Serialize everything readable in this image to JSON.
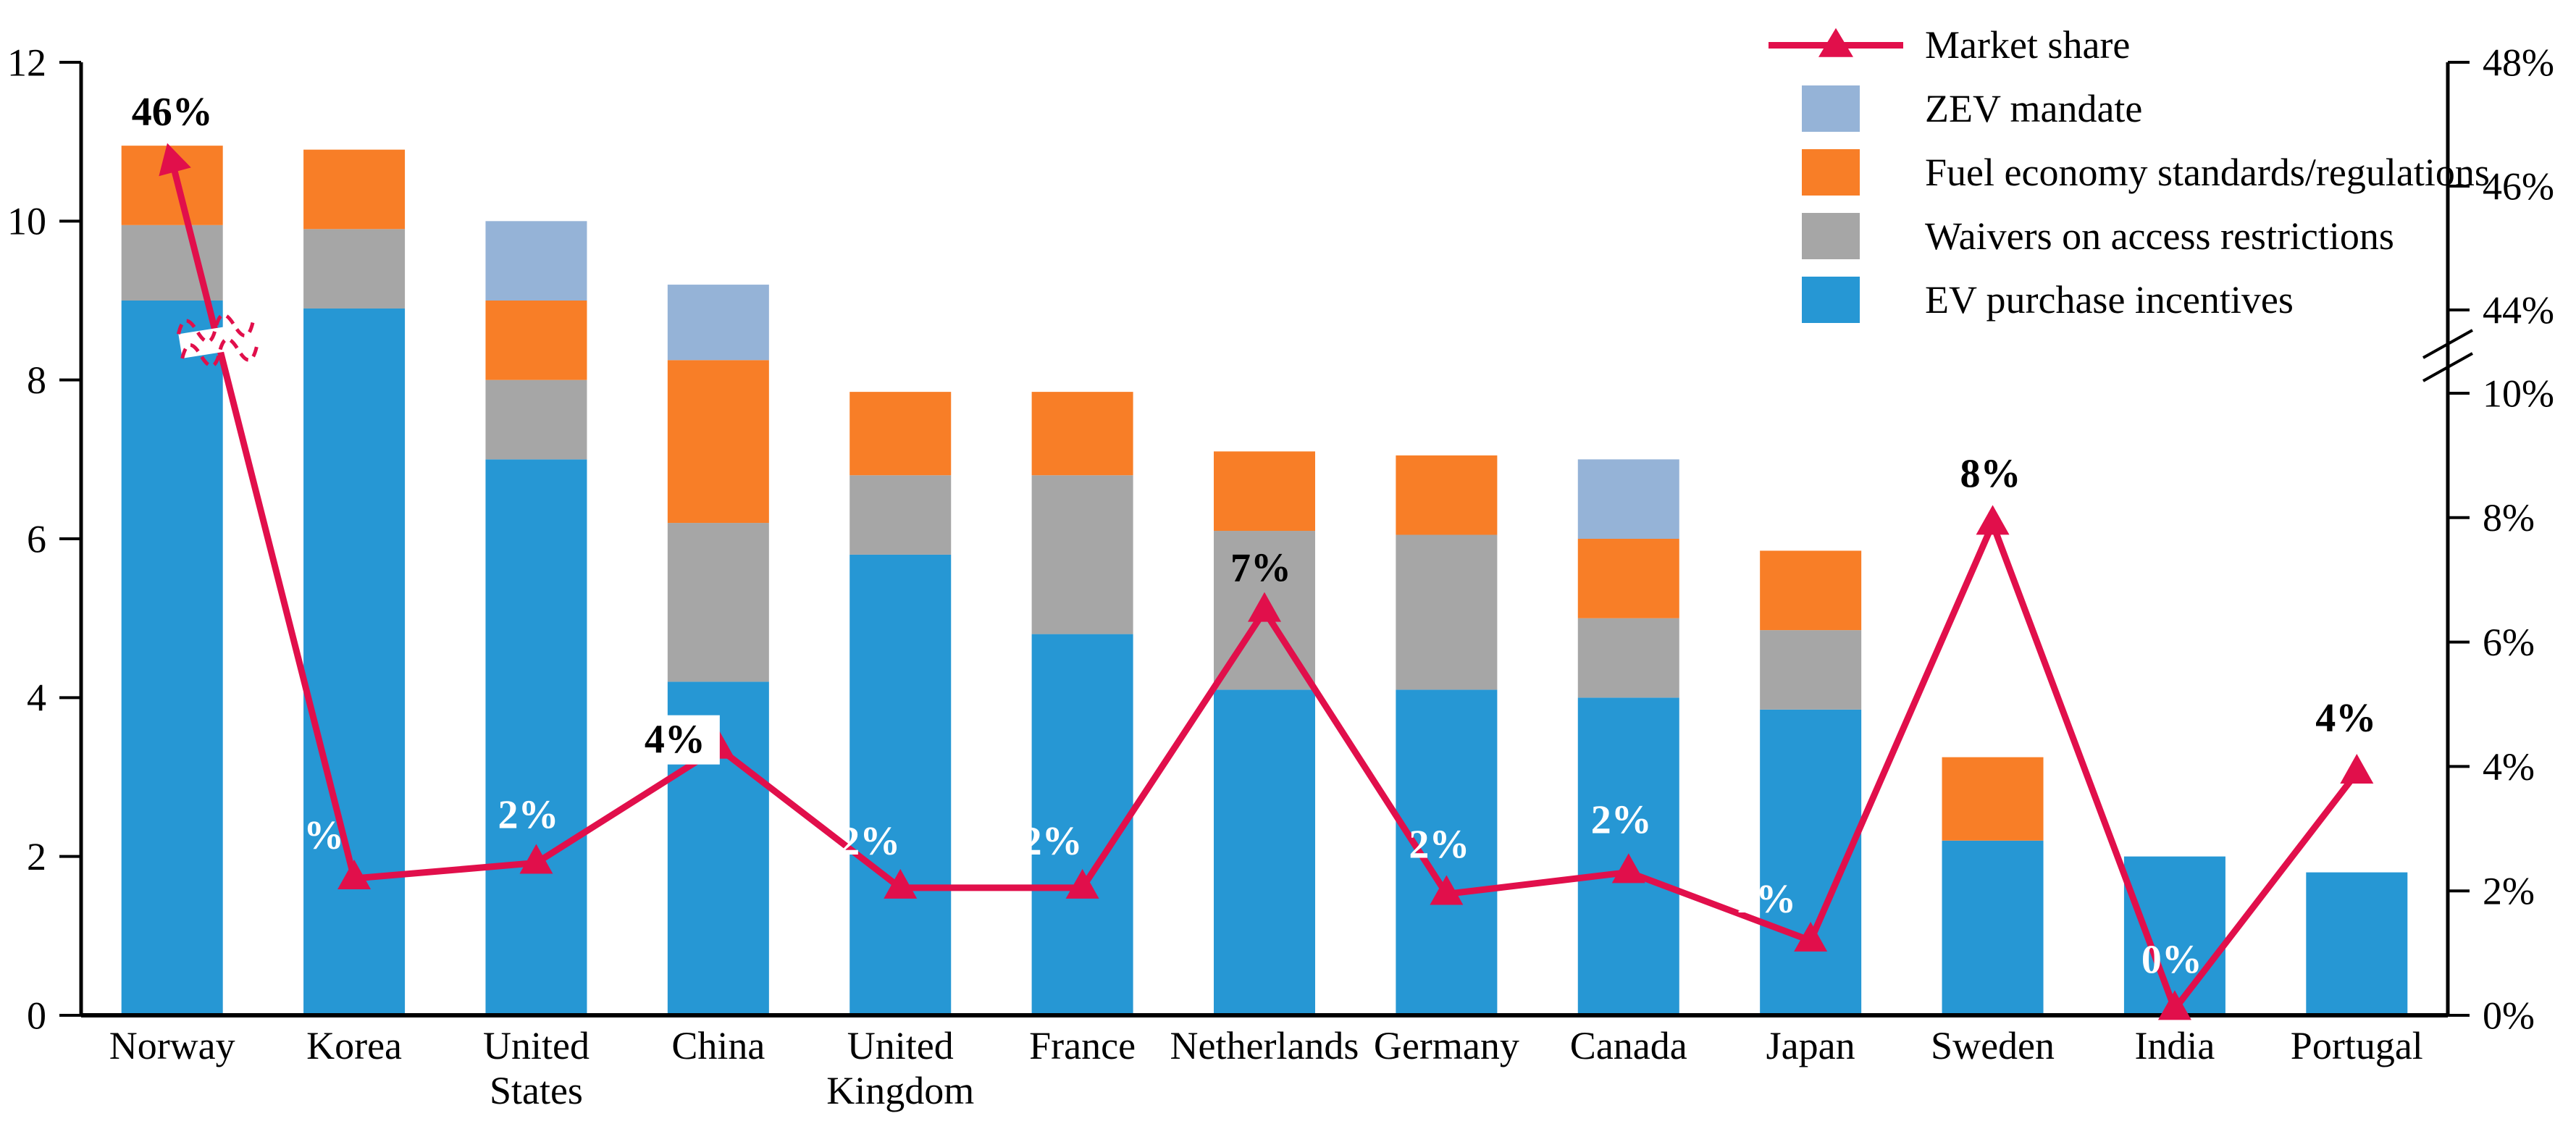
{
  "chart_data": {
    "type": "combo: stacked bar + line (broken secondary axis)",
    "categories": [
      "Norway",
      "Korea",
      "United States",
      "China",
      "United Kingdom",
      "France",
      "Netherlands",
      "Germany",
      "Canada",
      "Japan",
      "Sweden",
      "India",
      "Portugal"
    ],
    "category_label_lines": [
      [
        "Norway"
      ],
      [
        "Korea"
      ],
      [
        "United",
        "States"
      ],
      [
        "China"
      ],
      [
        "United",
        "Kingdom"
      ],
      [
        "France"
      ],
      [
        "Netherlands"
      ],
      [
        "Germany"
      ],
      [
        "Canada"
      ],
      [
        "Japan"
      ],
      [
        "Sweden"
      ],
      [
        "India"
      ],
      [
        "Portugal"
      ]
    ],
    "series": [
      {
        "name": "EV purchase incentives",
        "color": "#2697D4",
        "values": [
          9.0,
          8.9,
          7.0,
          4.2,
          5.8,
          4.8,
          4.1,
          4.1,
          4.0,
          3.85,
          2.2,
          2.0,
          1.8
        ]
      },
      {
        "name": "Waivers on access restrictions",
        "color": "#A6A6A6",
        "values": [
          0.95,
          1.0,
          1.0,
          2.0,
          1.0,
          2.0,
          2.0,
          1.95,
          1.0,
          1.0,
          0,
          0,
          0
        ]
      },
      {
        "name": "Fuel economy standards/regulations",
        "color": "#F87E27",
        "values": [
          1.0,
          1.0,
          1.0,
          2.05,
          1.05,
          1.05,
          1.0,
          1.0,
          1.0,
          1.0,
          1.05,
          0,
          0
        ]
      },
      {
        "name": "ZEV mandate",
        "color": "#95B3D7",
        "values": [
          0,
          0,
          1.0,
          0.95,
          0,
          0,
          0,
          0,
          1.0,
          0,
          0,
          0,
          0
        ]
      }
    ],
    "line": {
      "name": "Market share",
      "color": "#E10F4B",
      "values": [
        46.4,
        2.2,
        2.45,
        4.3,
        2.05,
        2.05,
        6.5,
        1.95,
        2.3,
        1.2,
        7.9,
        0.1,
        3.9
      ],
      "labels": [
        "46%",
        "2%",
        "2%",
        "4%",
        "2%",
        "2%",
        "7%",
        "2%",
        "2%",
        "1%",
        "8%",
        "0%",
        "4%"
      ],
      "label_colors": [
        "#000000",
        "#ffffff",
        "#ffffff",
        "#000000",
        "#ffffff",
        "#ffffff",
        "#000000",
        "#ffffff",
        "#ffffff",
        "#ffffff",
        "#000000",
        "#ffffff",
        "#000000"
      ],
      "label_has_white_box": [
        false,
        false,
        false,
        true,
        false,
        false,
        false,
        false,
        false,
        false,
        false,
        false,
        false
      ],
      "has_break_mark_between": [
        "Norway",
        "Korea"
      ]
    },
    "left_axis": {
      "ticks": [
        "0",
        "2",
        "4",
        "6",
        "8",
        "10",
        "12"
      ],
      "min": 0,
      "max": 12
    },
    "right_axis": {
      "lower_ticks": [
        "0%",
        "2%",
        "4%",
        "6%",
        "8%",
        "10%"
      ],
      "upper_ticks": [
        "44%",
        "46%",
        "48%"
      ],
      "has_break": true
    },
    "legend": {
      "position": "top-right",
      "items": [
        {
          "label": "Market share",
          "type": "line-marker",
          "color": "#E10F4B"
        },
        {
          "label": "ZEV mandate",
          "type": "swatch",
          "color": "#95B3D7"
        },
        {
          "label": "Fuel economy standards/regulations",
          "type": "swatch",
          "color": "#F87E27"
        },
        {
          "label": "Waivers on access restrictions",
          "type": "swatch",
          "color": "#A6A6A6"
        },
        {
          "label": "EV purchase incentives",
          "type": "swatch",
          "color": "#2697D4"
        }
      ]
    },
    "grid": false
  }
}
